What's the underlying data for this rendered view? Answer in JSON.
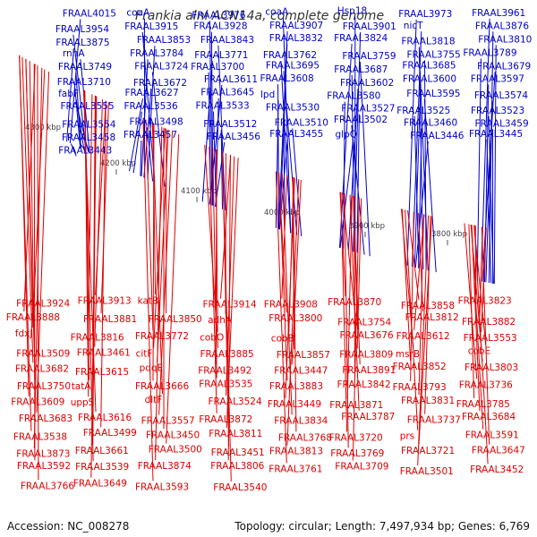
{
  "title": "Frankia alni ACN14a, complete genome",
  "accession": "Accession: NC_008278",
  "topology": "Topology: circular; Length: 7,497,934 bp; Genes: 6,769",
  "colors": {
    "forward": "#0000cc",
    "reverse": "#dd0000",
    "backbone": "#777777"
  },
  "scale_labels": [
    "4300 kbp",
    "4200 kbp",
    "4100 kbp",
    "4000 kbp",
    "3900 kbp",
    "3800 kbp"
  ],
  "forward_genes": [
    "FRAAL4015",
    "coaA",
    "FRAAL3976",
    "coaA",
    "Hsp18",
    "FRAAL3973",
    "FRAAL3961",
    "FRAAL3954",
    "FRAAL3915",
    "FRAAL3928",
    "FRAAL3907",
    "FRAAL3901",
    "nicT",
    "FRAAL3876",
    "FRAAL3875",
    "FRAAL3853",
    "FRAAL3843",
    "FRAAL3832",
    "FRAAL3824",
    "FRAAL3818",
    "FRAAL3810",
    "rnhA",
    "FRAAL3784",
    "FRAAL3771",
    "FRAAL3762",
    "FRAAL3759",
    "FRAAL3755",
    "FRAAL3789",
    "FRAAL3749",
    "FRAAL3724",
    "FRAAL3700",
    "FRAAL3695",
    "FRAAL3687",
    "FRAAL3685",
    "FRAAL3679",
    "FRAAL3710",
    "FRAAL3672",
    "FRAAL3611",
    "FRAAL3608",
    "FRAAL3602",
    "FRAAL3600",
    "FRAAL3597",
    "fabF",
    "FRAAL3627",
    "FRAAL3645",
    "lpd",
    "FRAAL3580",
    "FRAAL3595",
    "FRAAL3574",
    "FRAAL3555",
    "FRAAL3536",
    "FRAAL3533",
    "FRAAL3530",
    "FRAAL3527",
    "FRAAL3525",
    "FRAAL3523",
    "FRAAL3554",
    "FRAAL3498",
    "FRAAL3512",
    "FRAAL3510",
    "FRAAL3502",
    "FRAAL3460",
    "FRAAL3459",
    "FRAAL3458",
    "FRAAL3457",
    "FRAAL3456",
    "FRAAL3455",
    "glpQ",
    "FRAAL3446",
    "FRAAL3445",
    "FRAAL3443"
  ],
  "reverse_genes": [
    "FRAAL3924",
    "FRAAL3913",
    "katB",
    "FRAAL3914",
    "FRAAL3908",
    "FRAAL3870",
    "FRAAL3858",
    "FRAAL3823",
    "FRAAL3888",
    "FRAAL3881",
    "FRAAL3850",
    "adhA",
    "FRAAL3800",
    "FRAAL3754",
    "FRAAL3812",
    "FRAAL3882",
    "fdxJ",
    "FRAAL3816",
    "FRAAL3772",
    "cobO",
    "cobB",
    "FRAAL3676",
    "FRAAL3612",
    "FRAAL3553",
    "FRAAL3509",
    "FRAAL3461",
    "citF",
    "FRAAL3885",
    "FRAAL3857",
    "FRAAL3809",
    "msrB",
    "cobE",
    "FRAAL3682",
    "FRAAL3615",
    "pqqE",
    "FRAAL3492",
    "FRAAL3447",
    "FRAAL3891",
    "FRAAL3852",
    "FRAAL3803",
    "FRAAL3750",
    "tatA",
    "FRAAL3666",
    "FRAAL3535",
    "FRAAL3883",
    "FRAAL3842",
    "FRAAL3793",
    "FRAAL3736",
    "FRAAL3609",
    "uppS",
    "dltF",
    "FRAAL3524",
    "FRAAL3449",
    "FRAAL3871",
    "FRAAL3831",
    "FRAAL3785",
    "FRAAL3683",
    "FRAAL3616",
    "FRAAL3557",
    "FRAAL3872",
    "FRAAL3834",
    "FRAAL3787",
    "FRAAL3737",
    "FRAAL3684",
    "FRAAL3538",
    "FRAAL3499",
    "FRAAL3450",
    "FRAAL3811",
    "FRAAL3768",
    "FRAAL3720",
    "prs",
    "FRAAL3591",
    "FRAAL3873",
    "FRAAL3661",
    "FRAAL3500",
    "FRAAL3451",
    "FRAAL3813",
    "FRAAL3769",
    "FRAAL3721",
    "FRAAL3647",
    "FRAAL3592",
    "FRAAL3539",
    "FRAAL3874",
    "FRAAL3806",
    "FRAAL3761",
    "FRAAL3709",
    "FRAAL3501",
    "FRAAL3452",
    "FRAAL3766",
    "FRAAL3649",
    "FRAAL3593",
    "FRAAL3540"
  ]
}
